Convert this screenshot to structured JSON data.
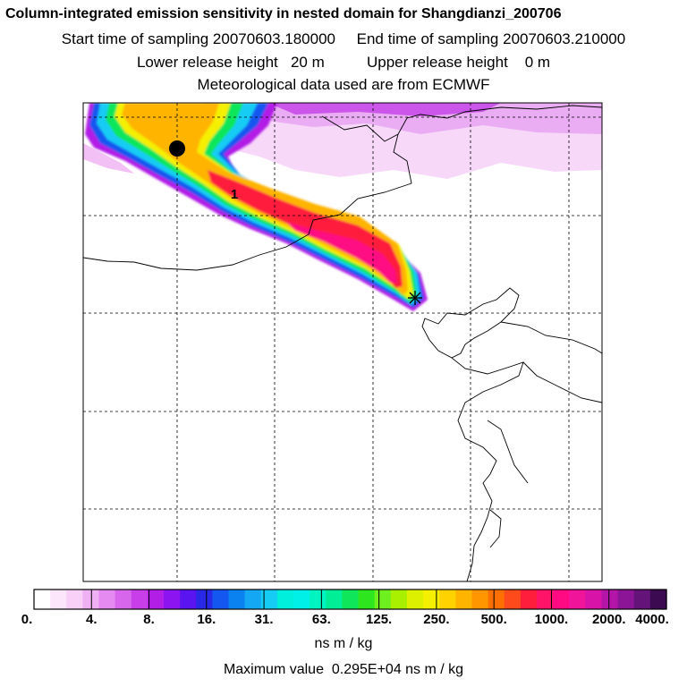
{
  "header": {
    "title": "Column-integrated emission sensitivity in nested domain for Shangdianzi_200706",
    "start": "Start time of sampling 20070603.180000",
    "end": "End time of sampling 20070603.210000",
    "lower": "Lower release height   20 m",
    "upper": "Upper release height    0 m",
    "met": "Meteorological data used are from ECMWF"
  },
  "chart_data": {
    "type": "heatmap",
    "title": "Column-integrated emission sensitivity in nested domain for Shangdianzi_200706",
    "units": "ns m / kg",
    "max_value_text": "Maximum value  0.295E+04 ns m / kg",
    "marker_label": "1",
    "colorbar": {
      "tick_labels": [
        "0.",
        "4.",
        "8.",
        "16.",
        "31.",
        "63.",
        "125.",
        "250.",
        "500.",
        "1000.",
        "2000.",
        "4000."
      ],
      "colors": [
        "#ffffff",
        "#fce6fc",
        "#f8d0f8",
        "#f0b0f4",
        "#e48af0",
        "#d866ec",
        "#c83ee8",
        "#b21ee6",
        "#8c14f0",
        "#5a14f0",
        "#2828e6",
        "#1456f0",
        "#0a82f0",
        "#14a8f4",
        "#14ccf4",
        "#00eedc",
        "#00f0e8",
        "#00f4c0",
        "#00ee96",
        "#10e65a",
        "#2ee61e",
        "#6ef01e",
        "#a8f000",
        "#dcf000",
        "#f4f000",
        "#ffd200",
        "#ffb400",
        "#ff9600",
        "#ff7000",
        "#ff4a1c",
        "#ff1e3c",
        "#ff1468",
        "#ff0a82",
        "#f0149a",
        "#d814a8",
        "#b414a8",
        "#8c1496",
        "#641478",
        "#3c0a50"
      ]
    }
  }
}
